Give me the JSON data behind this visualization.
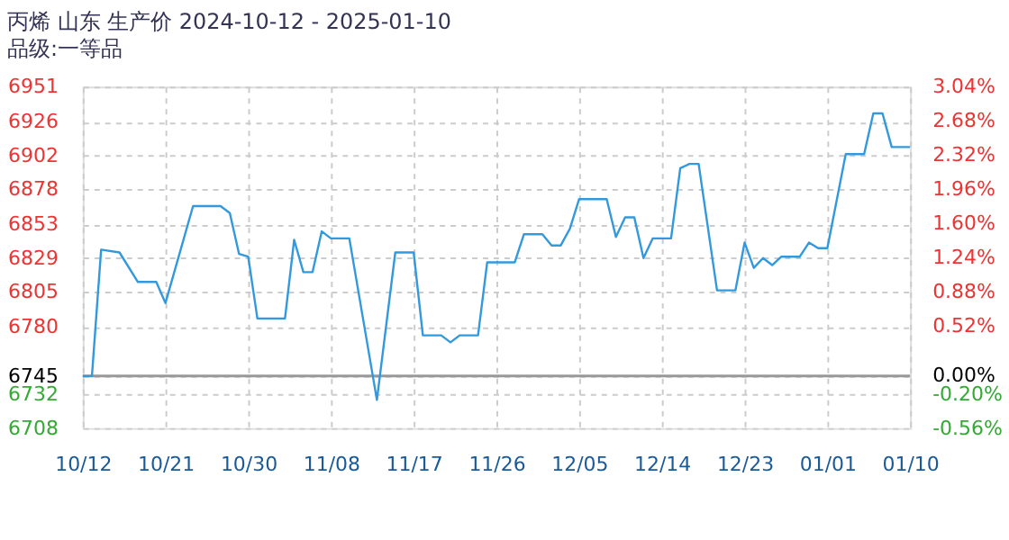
{
  "chart_data": {
    "type": "line",
    "title": "丙烯 山东 生产价 2024-10-12 - 2025-01-10",
    "subtitle": "品级:一等品",
    "x": [
      "2024-10-12",
      "2024-10-13",
      "2024-10-14",
      "2024-10-16",
      "2024-10-18",
      "2024-10-20",
      "2024-10-21",
      "2024-10-24",
      "2024-10-27",
      "2024-10-28",
      "2024-10-29",
      "2024-10-30",
      "2024-10-31",
      "2024-11-03",
      "2024-11-04",
      "2024-11-05",
      "2024-11-06",
      "2024-11-07",
      "2024-11-08",
      "2024-11-10",
      "2024-11-13",
      "2024-11-15",
      "2024-11-17",
      "2024-11-18",
      "2024-11-20",
      "2024-11-21",
      "2024-11-22",
      "2024-11-24",
      "2024-11-25",
      "2024-11-28",
      "2024-11-29",
      "2024-12-01",
      "2024-12-02",
      "2024-12-03",
      "2024-12-04",
      "2024-12-05",
      "2024-12-08",
      "2024-12-09",
      "2024-12-10",
      "2024-12-11",
      "2024-12-12",
      "2024-12-13",
      "2024-12-15",
      "2024-12-16",
      "2024-12-17",
      "2024-12-18",
      "2024-12-20",
      "2024-12-22",
      "2024-12-23",
      "2024-12-24",
      "2024-12-25",
      "2024-12-26",
      "2024-12-27",
      "2024-12-29",
      "2024-12-30",
      "2024-12-31",
      "2025-01-01",
      "2025-01-03",
      "2025-01-05",
      "2025-01-06",
      "2025-01-07",
      "2025-01-08",
      "2025-01-10"
    ],
    "series": [
      {
        "color": "#3399dd",
        "values": [
          6745,
          6745,
          6835,
          6833,
          6812,
          6812,
          6797,
          6866,
          6866,
          6861,
          6832,
          6830,
          6786,
          6786,
          6842,
          6819,
          6819,
          6848,
          6843,
          6843,
          6728,
          6833,
          6833,
          6774,
          6774,
          6769,
          6774,
          6774,
          6826,
          6826,
          6846,
          6846,
          6838,
          6838,
          6850,
          6871,
          6871,
          6844,
          6858,
          6858,
          6829,
          6843,
          6843,
          6893,
          6896,
          6896,
          6806,
          6806,
          6840,
          6822,
          6829,
          6824,
          6830,
          6830,
          6840,
          6836,
          6836,
          6903,
          6903,
          6932,
          6932,
          6908,
          6908
        ]
      }
    ],
    "xlim": [
      "2024-10-12",
      "2025-01-10"
    ],
    "xticks": [
      {
        "value": "2024-10-12",
        "label": "10/12"
      },
      {
        "value": "2024-10-21",
        "label": "10/21"
      },
      {
        "value": "2024-10-30",
        "label": "10/30"
      },
      {
        "value": "2024-11-08",
        "label": "11/08"
      },
      {
        "value": "2024-11-17",
        "label": "11/17"
      },
      {
        "value": "2024-11-26",
        "label": "11/26"
      },
      {
        "value": "2024-12-05",
        "label": "12/05"
      },
      {
        "value": "2024-12-14",
        "label": "12/14"
      },
      {
        "value": "2024-12-23",
        "label": "12/23"
      },
      {
        "value": "2025-01-01",
        "label": "01/01"
      },
      {
        "value": "2025-01-10",
        "label": "01/10"
      }
    ],
    "ylim": [
      6708,
      6951
    ],
    "yticks": [
      6708,
      6732,
      6745,
      6780,
      6805,
      6829,
      6853,
      6878,
      6902,
      6926,
      6951
    ],
    "y2lim": [
      -0.56,
      3.04
    ],
    "y2ticks": [
      {
        "value": -0.56,
        "label": "-0.56%"
      },
      {
        "value": -0.2,
        "label": "-0.20%"
      },
      {
        "value": 0,
        "label": "0.00%"
      },
      {
        "value": 0.52,
        "label": "0.52%"
      },
      {
        "value": 0.88,
        "label": "0.88%"
      },
      {
        "value": 1.24,
        "label": "1.24%"
      },
      {
        "value": 1.6,
        "label": "1.60%"
      },
      {
        "value": 1.96,
        "label": "1.96%"
      },
      {
        "value": 2.32,
        "label": "2.32%"
      },
      {
        "value": 2.68,
        "label": "2.68%"
      },
      {
        "value": 3.04,
        "label": "3.04%"
      }
    ],
    "ref_lines": [
      {
        "axis": "y",
        "value": 6745,
        "color": "#999999"
      }
    ],
    "grid": true,
    "marker": "none",
    "line_style": "solid"
  }
}
